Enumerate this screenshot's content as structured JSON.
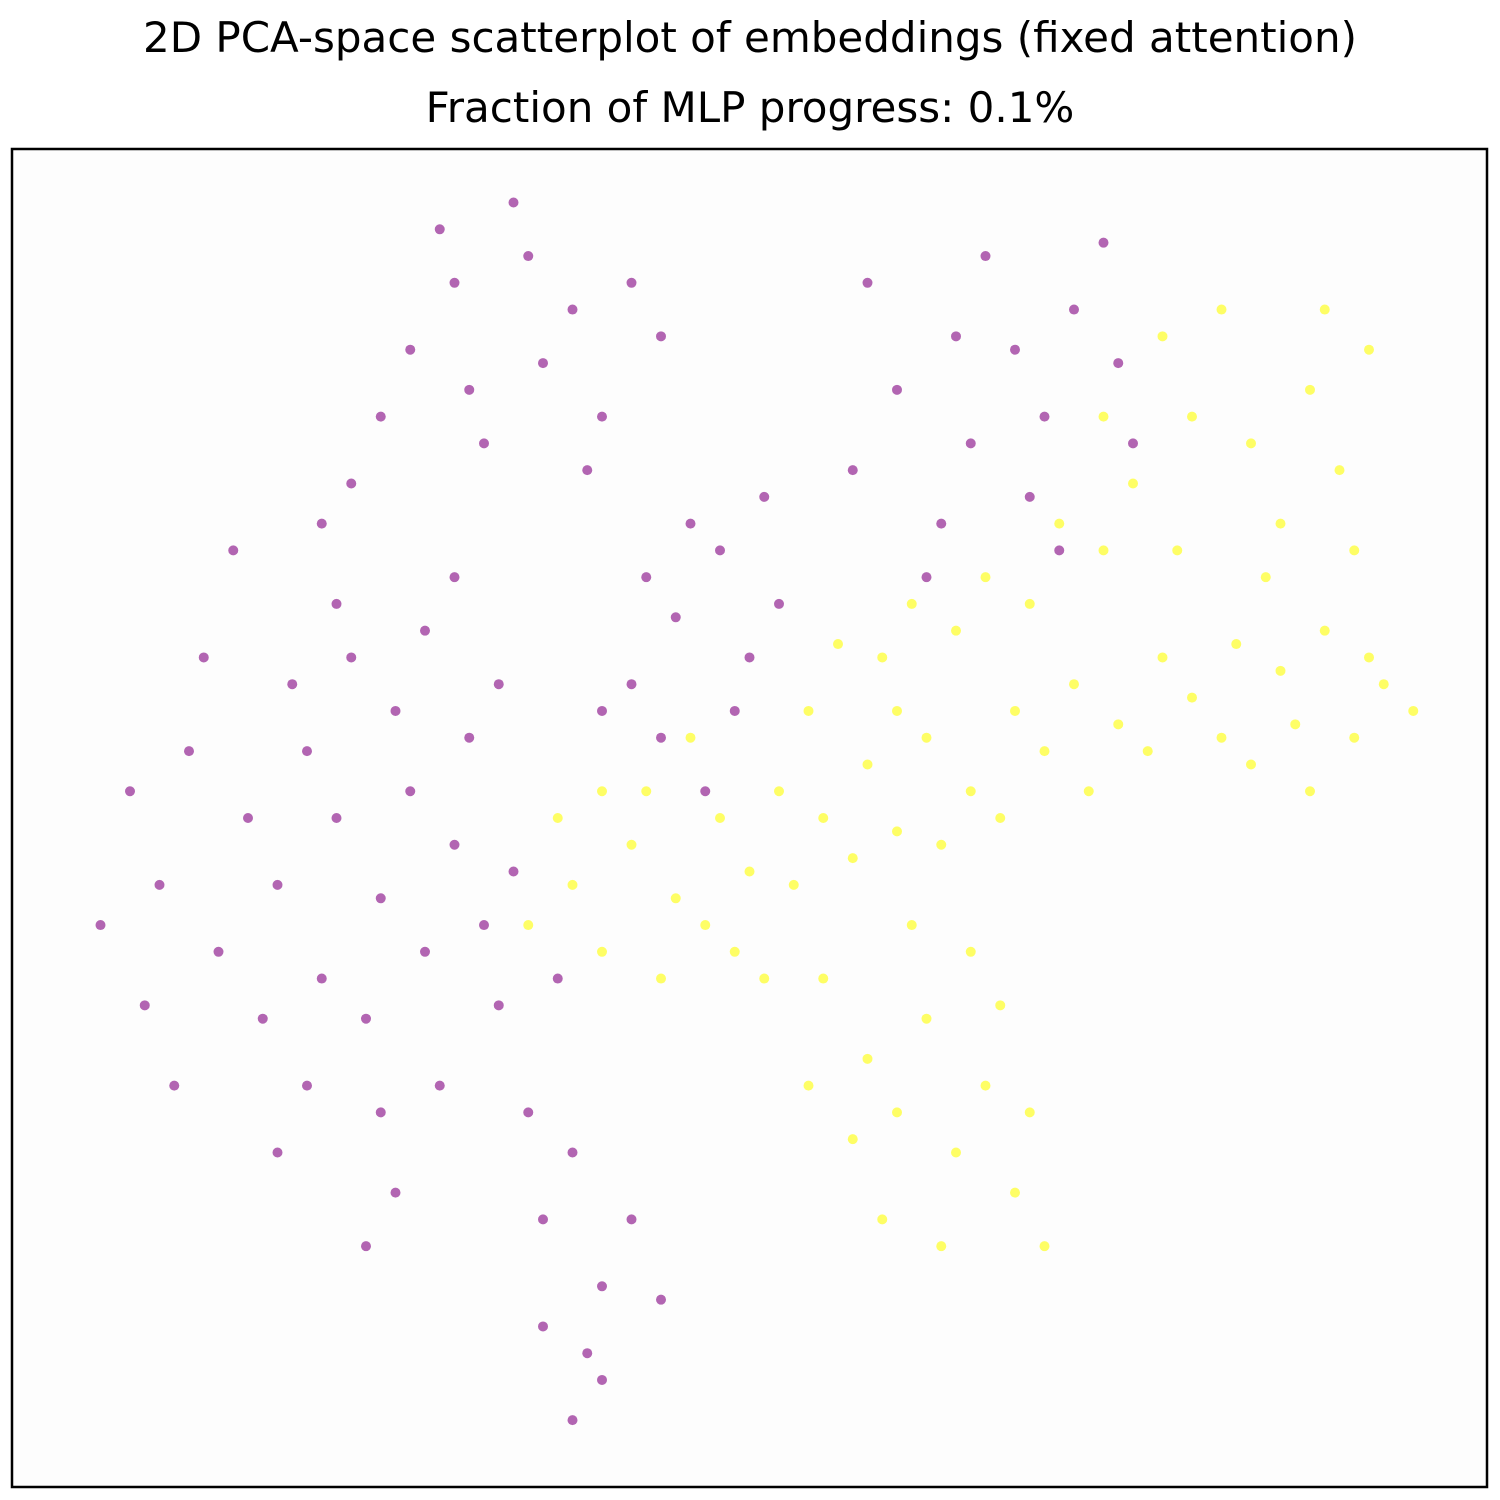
{
  "chart_data": {
    "type": "scatter",
    "title": "2D PCA-space scatterplot of embeddings (fixed attention)",
    "subtitle": "Fraction of MLP progress: 0.1%",
    "xlim": [
      0,
      100
    ],
    "ylim": [
      0,
      100
    ],
    "series": [
      {
        "color": "#800080",
        "x": [
          25,
          22,
          28,
          20,
          30,
          24,
          18,
          26,
          32,
          21,
          27,
          23,
          29,
          19,
          33,
          16,
          31,
          25,
          22,
          34,
          14,
          28,
          20,
          35,
          12,
          26,
          30,
          17,
          36,
          10,
          24,
          38,
          40,
          42,
          39,
          44,
          13,
          8,
          6,
          15,
          37,
          33,
          11,
          9,
          18,
          27,
          30,
          35,
          38,
          40,
          32,
          25,
          36,
          42,
          29,
          34,
          44,
          31,
          23,
          39,
          21,
          45,
          48,
          42,
          50,
          46,
          52,
          44,
          49,
          43,
          51,
          47,
          40,
          60,
          65,
          68,
          63,
          70,
          72,
          58,
          75,
          66,
          62,
          69,
          74,
          57,
          76,
          64,
          71,
          38,
          40,
          36
        ],
        "values": [
          44,
          50,
          40,
          55,
          48,
          35,
          45,
          58,
          42,
          38,
          52,
          62,
          30,
          60,
          36,
          50,
          56,
          28,
          66,
          46,
          40,
          64,
          30,
          28,
          55,
          22,
          68,
          35,
          20,
          45,
          18,
          25,
          15,
          20,
          10,
          14,
          62,
          52,
          42,
          70,
          38,
          60,
          30,
          36,
          25,
          85,
          90,
          92,
          88,
          80,
          78,
          80,
          84,
          90,
          94,
          96,
          86,
          82,
          75,
          76,
          72,
          65,
          70,
          60,
          62,
          72,
          66,
          56,
          58,
          68,
          74,
          52,
          58,
          82,
          78,
          85,
          72,
          80,
          88,
          90,
          84,
          92,
          68,
          74,
          93,
          76,
          78,
          86,
          70,
          5,
          8,
          12
        ]
      },
      {
        "color": "#ffff00",
        "x": [
          35,
          38,
          40,
          42,
          45,
          48,
          50,
          52,
          55,
          58,
          60,
          62,
          65,
          68,
          70,
          72,
          75,
          78,
          80,
          83,
          86,
          89,
          92,
          95,
          37,
          44,
          47,
          53,
          57,
          63,
          67,
          73,
          77,
          82,
          87,
          91,
          43,
          46,
          54,
          59,
          61,
          64,
          66,
          69,
          71,
          74,
          60,
          56,
          40,
          49,
          51,
          84,
          88,
          93,
          76,
          80,
          84,
          88,
          90,
          92,
          78,
          82,
          86,
          79,
          85,
          91,
          74,
          89,
          55,
          58,
          60,
          62,
          64,
          66,
          68,
          70,
          59,
          63,
          57,
          67,
          61,
          65,
          69,
          54
        ],
        "values": [
          42,
          45,
          40,
          48,
          44,
          50,
          46,
          52,
          50,
          54,
          49,
          56,
          52,
          58,
          55,
          60,
          57,
          62,
          59,
          63,
          61,
          64,
          62,
          58,
          50,
          38,
          42,
          45,
          47,
          48,
          50,
          52,
          55,
          56,
          57,
          56,
          52,
          56,
          58,
          62,
          66,
          64,
          68,
          66,
          72,
          70,
          58,
          63,
          52,
          40,
          38,
          54,
          52,
          60,
          75,
          80,
          78,
          82,
          76,
          85,
          86,
          88,
          72,
          70,
          68,
          70,
          80,
          88,
          38,
          32,
          28,
          35,
          25,
          30,
          22,
          18,
          20,
          18,
          26,
          36,
          42,
          40,
          28,
          30
        ]
      }
    ]
  }
}
